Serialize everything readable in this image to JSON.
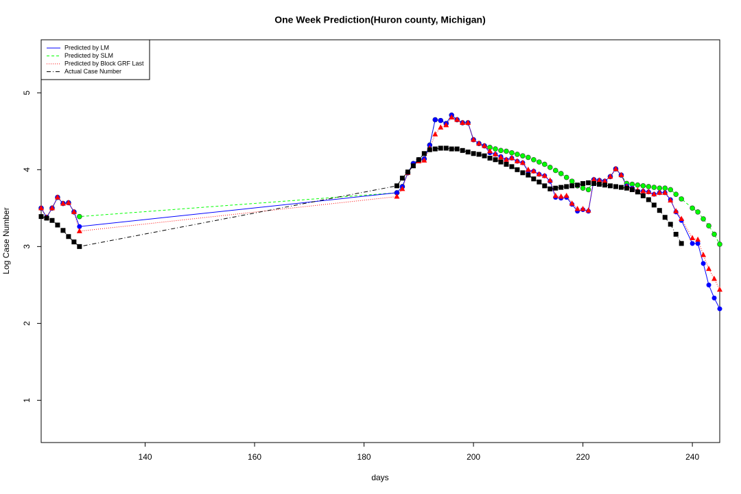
{
  "chart_data": {
    "type": "line",
    "title": "One Week Prediction(Huron county, Michigan)",
    "x_label": "days",
    "y_label": "Log Case Number",
    "x": [
      121,
      122,
      123,
      124,
      125,
      126,
      127,
      128,
      186,
      187,
      188,
      189,
      190,
      191,
      192,
      193,
      194,
      195,
      196,
      197,
      198,
      199,
      200,
      201,
      202,
      203,
      204,
      205,
      206,
      207,
      208,
      209,
      210,
      211,
      212,
      213,
      214,
      215,
      216,
      217,
      218,
      219,
      220,
      221,
      222,
      223,
      224,
      225,
      226,
      227,
      228,
      229,
      230,
      231,
      232,
      233,
      234,
      235,
      236,
      237,
      238,
      240,
      241,
      242,
      243,
      244,
      245
    ],
    "xlim": [
      121,
      245
    ],
    "xticks": [
      140,
      160,
      180,
      200,
      220,
      240
    ],
    "ylim": [
      0.45,
      5.69
    ],
    "yticks": [
      1,
      2,
      3,
      4,
      5
    ],
    "legend_position": "top-left",
    "series": [
      {
        "name": "Predicted by SLM",
        "color": "#00ff00",
        "line_style": "dashed",
        "marker": "circle",
        "values": [
          3.5,
          3.38,
          3.5,
          3.64,
          3.56,
          3.57,
          3.45,
          3.39,
          3.7,
          3.78,
          3.96,
          4.08,
          4.13,
          4.14,
          4.32,
          4.65,
          4.64,
          4.6,
          4.71,
          4.65,
          4.61,
          4.61,
          4.39,
          4.34,
          4.31,
          4.29,
          4.27,
          4.25,
          4.24,
          4.22,
          4.2,
          4.18,
          4.16,
          4.13,
          4.1,
          4.07,
          4.03,
          3.99,
          3.95,
          3.9,
          3.85,
          3.79,
          3.76,
          3.74,
          3.87,
          3.86,
          3.85,
          3.91,
          4.01,
          3.93,
          3.82,
          3.81,
          3.8,
          3.79,
          3.78,
          3.77,
          3.76,
          3.76,
          3.74,
          3.68,
          3.62,
          3.5,
          3.45,
          3.36,
          3.27,
          3.16,
          3.03
        ]
      },
      {
        "name": "Predicted by LM",
        "color": "#0000ff",
        "line_style": "solid",
        "marker": "circle",
        "values": [
          3.5,
          3.38,
          3.5,
          3.64,
          3.56,
          3.57,
          3.45,
          3.26,
          3.7,
          3.78,
          3.96,
          4.08,
          4.13,
          4.14,
          4.32,
          4.65,
          4.64,
          4.6,
          4.71,
          4.65,
          4.61,
          4.61,
          4.39,
          4.34,
          4.31,
          4.22,
          4.2,
          4.17,
          4.13,
          4.15,
          4.11,
          4.09,
          3.98,
          3.98,
          3.94,
          3.92,
          3.85,
          3.64,
          3.63,
          3.64,
          3.55,
          3.46,
          3.48,
          3.46,
          3.87,
          3.86,
          3.85,
          3.91,
          4.01,
          3.93,
          3.79,
          3.76,
          3.72,
          3.72,
          3.71,
          3.68,
          3.7,
          3.7,
          3.61,
          3.45,
          3.34,
          3.04,
          3.04,
          2.78,
          2.5,
          2.33,
          2.19
        ]
      },
      {
        "name": "Predicted by Block GRF Last",
        "color": "#ff0000",
        "line_style": "dotted",
        "marker": "triangle",
        "values": [
          3.5,
          3.38,
          3.5,
          3.64,
          3.56,
          3.57,
          3.45,
          3.2,
          3.65,
          3.75,
          3.96,
          4.05,
          4.11,
          4.12,
          4.28,
          4.46,
          4.55,
          4.58,
          4.68,
          4.65,
          4.61,
          4.61,
          4.39,
          4.34,
          4.31,
          4.24,
          4.2,
          4.16,
          4.13,
          4.15,
          4.11,
          4.09,
          4.0,
          3.98,
          3.94,
          3.92,
          3.86,
          3.66,
          3.65,
          3.66,
          3.56,
          3.49,
          3.49,
          3.47,
          3.87,
          3.86,
          3.85,
          3.91,
          4.01,
          3.93,
          3.78,
          3.75,
          3.73,
          3.72,
          3.71,
          3.68,
          3.7,
          3.7,
          3.6,
          3.46,
          3.36,
          3.11,
          3.09,
          2.89,
          2.71,
          2.58,
          2.44
        ]
      },
      {
        "name": "Actual Case Number",
        "color": "#000000",
        "line_style": "dotdash",
        "marker": "square",
        "values": [
          3.39,
          3.37,
          3.34,
          3.28,
          3.21,
          3.13,
          3.06,
          3.0,
          3.79,
          3.89,
          3.97,
          4.05,
          4.13,
          4.21,
          4.26,
          4.27,
          4.28,
          4.28,
          4.27,
          4.27,
          4.25,
          4.23,
          4.21,
          4.2,
          4.18,
          4.15,
          4.13,
          4.1,
          4.07,
          4.04,
          4.0,
          3.96,
          3.93,
          3.88,
          3.84,
          3.79,
          3.75,
          3.76,
          3.77,
          3.78,
          3.79,
          3.8,
          3.82,
          3.83,
          3.82,
          3.81,
          3.8,
          3.79,
          3.78,
          3.77,
          3.76,
          3.74,
          3.71,
          3.66,
          3.61,
          3.54,
          3.47,
          3.38,
          3.29,
          3.16,
          3.04,
          null,
          null,
          null,
          null,
          null,
          null
        ]
      }
    ]
  }
}
